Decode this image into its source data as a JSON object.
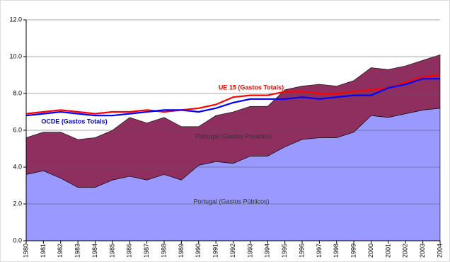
{
  "chart_data": {
    "type": "area-line",
    "categories": [
      "1980",
      "1981",
      "1982",
      "1983",
      "1984",
      "1985",
      "1986",
      "1987",
      "1988",
      "1989",
      "1990",
      "1991",
      "1992",
      "1993",
      "1994",
      "1995",
      "1996",
      "1997",
      "1998",
      "1999",
      "2000",
      "2001",
      "2002",
      "2003",
      "2004"
    ],
    "series": [
      {
        "name": "Portugal (Gastos Públicos)",
        "type": "area",
        "color": "#9999ff",
        "values": [
          3.6,
          3.8,
          3.4,
          2.9,
          2.9,
          3.3,
          3.5,
          3.3,
          3.6,
          3.3,
          4.1,
          4.3,
          4.2,
          4.6,
          4.6,
          5.1,
          5.5,
          5.6,
          5.6,
          5.9,
          6.8,
          6.7,
          6.9,
          7.1,
          7.2
        ]
      },
      {
        "name": "Portugal (Gastos Privados)",
        "type": "area",
        "color": "#8e2f5f",
        "values": [
          2.0,
          2.1,
          2.5,
          2.6,
          2.7,
          2.7,
          3.2,
          3.1,
          3.1,
          2.9,
          2.1,
          2.5,
          2.8,
          2.7,
          2.7,
          3.1,
          2.9,
          2.9,
          2.8,
          2.8,
          2.6,
          2.6,
          2.6,
          2.7,
          2.9
        ]
      },
      {
        "name": "UE 15 (Gastos Totais)",
        "type": "line",
        "color": "#ff0000",
        "values": [
          6.9,
          7.0,
          7.1,
          7.0,
          6.9,
          7.0,
          7.0,
          7.1,
          7.0,
          7.1,
          7.2,
          7.4,
          7.8,
          7.9,
          7.9,
          8.1,
          8.1,
          8.0,
          8.0,
          8.1,
          8.2,
          8.3,
          8.6,
          8.9,
          9.0
        ]
      },
      {
        "name": "OCDE (Gastos Totais)",
        "type": "line",
        "color": "#0000ff",
        "values": [
          6.8,
          6.9,
          7.0,
          6.9,
          6.8,
          6.8,
          6.9,
          7.0,
          7.1,
          7.1,
          7.0,
          7.2,
          7.5,
          7.7,
          7.7,
          7.7,
          7.8,
          7.7,
          7.8,
          7.9,
          7.9,
          8.3,
          8.5,
          8.8,
          8.8
        ]
      }
    ],
    "ylim": [
      0,
      12
    ],
    "yticks": [
      {
        "value": 0,
        "label": "0.0"
      },
      {
        "value": 2,
        "label": "2.0"
      },
      {
        "value": 4,
        "label": "4.0"
      },
      {
        "value": 6,
        "label": "6.0"
      },
      {
        "value": 8,
        "label": "8.0"
      },
      {
        "value": 10,
        "label": "10.0"
      },
      {
        "value": 12,
        "label": "12.0"
      }
    ],
    "grid": true
  }
}
